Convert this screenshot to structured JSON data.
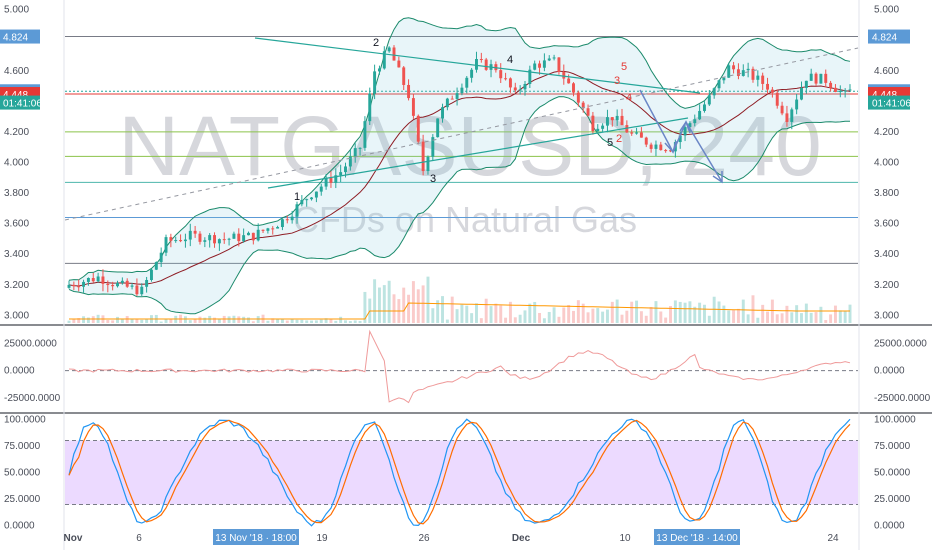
{
  "chart_data": {
    "type": "candlestick",
    "watermark": {
      "symbol": "NATGASUSD, 240",
      "description": "CFDs on Natural Gas"
    },
    "x_axis": {
      "ticks": [
        "Nov",
        "6",
        "13 Nov '18 · 18:00",
        "19",
        "26",
        "Dec",
        "10 ",
        "13 Dec '18 · 14:00",
        "24"
      ],
      "highlight_labels": [
        "13 Nov '18 · 18:00",
        "13 Dec '18 · 14:00"
      ]
    },
    "main_panel": {
      "y_ticks": [
        5.0,
        4.6,
        4.2,
        4.0,
        3.8,
        3.6,
        3.4,
        3.2,
        3.0
      ],
      "ylim": [
        2.95,
        5.05
      ],
      "price_tags_left": [
        "4.824",
        "4.466",
        "4.448",
        "01:41:06"
      ],
      "price_tags_right": [
        "4.824",
        "4.466",
        "4.448",
        "01:41:06"
      ],
      "horizontal_levels": [
        {
          "value": 4.824,
          "color": "#787b86"
        },
        {
          "value": 4.466,
          "color": "#26a69a",
          "dashed": true
        },
        {
          "value": 4.448,
          "color": "#e53935"
        },
        {
          "value": 4.2,
          "color": "#8bc34a"
        },
        {
          "value": 4.04,
          "color": "#8bc34a"
        },
        {
          "value": 3.87,
          "color": "#4db6ac"
        },
        {
          "value": 3.64,
          "color": "#5c9ad6"
        },
        {
          "value": 3.34,
          "color": "#787b86"
        }
      ],
      "wave_labels": [
        {
          "text": "1",
          "color": "#131722"
        },
        {
          "text": "2",
          "color": "#131722"
        },
        {
          "text": "3",
          "color": "#131722"
        },
        {
          "text": "4",
          "color": "#131722"
        },
        {
          "text": "5",
          "color": "#131722"
        },
        {
          "text": "3",
          "color": "#e53935"
        },
        {
          "text": "5",
          "color": "#e53935"
        },
        {
          "text": "4",
          "color": "#e53935"
        },
        {
          "text": "2",
          "color": "#e53935"
        }
      ],
      "colors": {
        "up": "#26a69a",
        "down": "#ef5350",
        "bands": "#1b8a6b",
        "band_fill": "rgba(130,200,220,0.18)",
        "basis": "#8e1c24",
        "projection": "#6a86c6"
      }
    },
    "indicator_panel": {
      "y_ticks": [
        "25000.0000",
        "0.0000",
        "-25000.0000"
      ],
      "ylim": [
        -38000,
        40000
      ],
      "line_color": "#ef9a9a"
    },
    "stochastic_panel": {
      "y_ticks": [
        "100.0000",
        "75.0000",
        "50.0000",
        "25.0000",
        "0.0000"
      ],
      "ylim": [
        -4,
        104
      ],
      "band": [
        20,
        80
      ],
      "band_color": "rgba(200,150,255,0.35)",
      "k_color": "#2196f3",
      "d_color": "#ff6d00"
    }
  }
}
